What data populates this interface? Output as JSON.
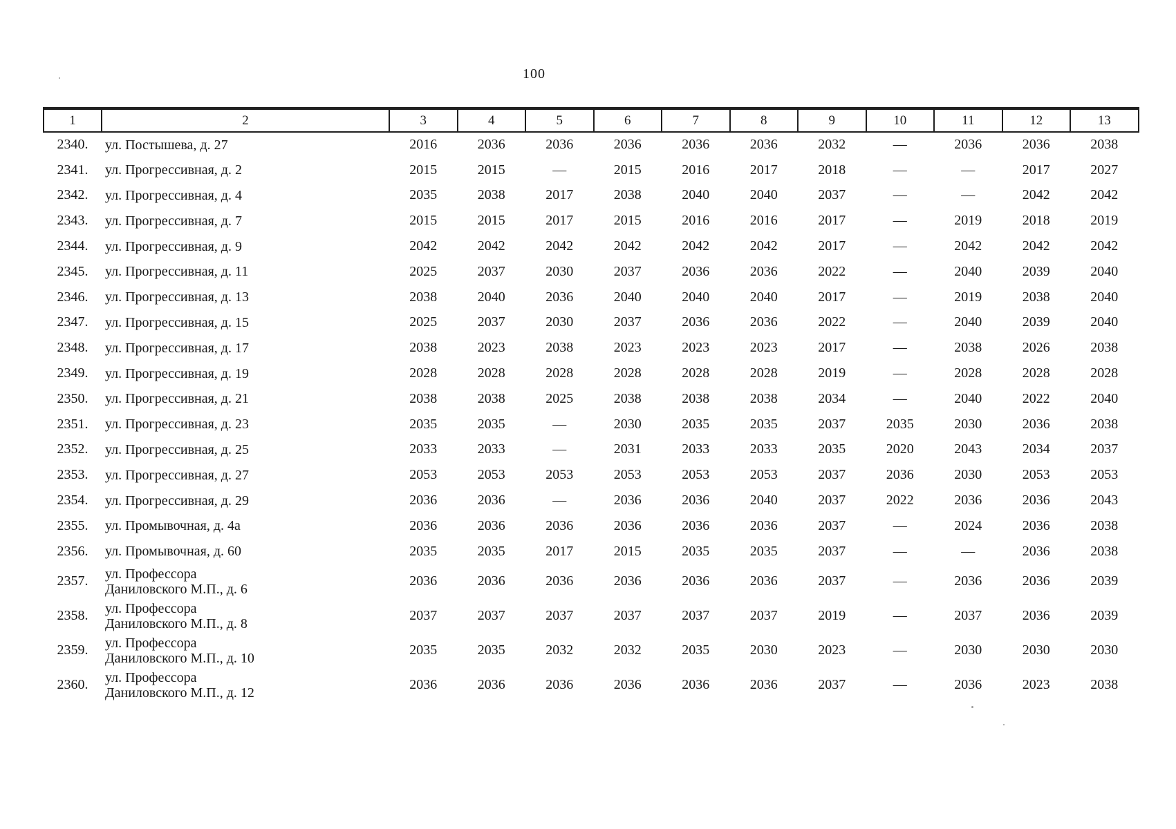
{
  "page_number": "100",
  "table": {
    "headers": [
      "1",
      "2",
      "3",
      "4",
      "5",
      "6",
      "7",
      "8",
      "9",
      "10",
      "11",
      "12",
      "13"
    ],
    "rows": [
      {
        "num": "2340.",
        "address_line1": "ул. Постышева, д. 27",
        "address_line2": "",
        "values": [
          "2016",
          "2036",
          "2036",
          "2036",
          "2036",
          "2036",
          "2032",
          "—",
          "2036",
          "2036",
          "2038"
        ]
      },
      {
        "num": "2341.",
        "address_line1": "ул. Прогрессивная, д. 2",
        "address_line2": "",
        "values": [
          "2015",
          "2015",
          "—",
          "2015",
          "2016",
          "2017",
          "2018",
          "—",
          "—",
          "2017",
          "2027"
        ]
      },
      {
        "num": "2342.",
        "address_line1": "ул. Прогрессивная, д. 4",
        "address_line2": "",
        "values": [
          "2035",
          "2038",
          "2017",
          "2038",
          "2040",
          "2040",
          "2037",
          "—",
          "—",
          "2042",
          "2042"
        ]
      },
      {
        "num": "2343.",
        "address_line1": "ул. Прогрессивная, д. 7",
        "address_line2": "",
        "values": [
          "2015",
          "2015",
          "2017",
          "2015",
          "2016",
          "2016",
          "2017",
          "—",
          "2019",
          "2018",
          "2019"
        ]
      },
      {
        "num": "2344.",
        "address_line1": "ул. Прогрессивная, д. 9",
        "address_line2": "",
        "values": [
          "2042",
          "2042",
          "2042",
          "2042",
          "2042",
          "2042",
          "2017",
          "—",
          "2042",
          "2042",
          "2042"
        ]
      },
      {
        "num": "2345.",
        "address_line1": "ул. Прогрессивная, д. 11",
        "address_line2": "",
        "values": [
          "2025",
          "2037",
          "2030",
          "2037",
          "2036",
          "2036",
          "2022",
          "—",
          "2040",
          "2039",
          "2040"
        ]
      },
      {
        "num": "2346.",
        "address_line1": "ул. Прогрессивная, д. 13",
        "address_line2": "",
        "values": [
          "2038",
          "2040",
          "2036",
          "2040",
          "2040",
          "2040",
          "2017",
          "—",
          "2019",
          "2038",
          "2040"
        ]
      },
      {
        "num": "2347.",
        "address_line1": "ул. Прогрессивная, д. 15",
        "address_line2": "",
        "values": [
          "2025",
          "2037",
          "2030",
          "2037",
          "2036",
          "2036",
          "2022",
          "—",
          "2040",
          "2039",
          "2040"
        ]
      },
      {
        "num": "2348.",
        "address_line1": "ул. Прогрессивная, д. 17",
        "address_line2": "",
        "values": [
          "2038",
          "2023",
          "2038",
          "2023",
          "2023",
          "2023",
          "2017",
          "—",
          "2038",
          "2026",
          "2038"
        ]
      },
      {
        "num": "2349.",
        "address_line1": "ул. Прогрессивная, д. 19",
        "address_line2": "",
        "values": [
          "2028",
          "2028",
          "2028",
          "2028",
          "2028",
          "2028",
          "2019",
          "—",
          "2028",
          "2028",
          "2028"
        ]
      },
      {
        "num": "2350.",
        "address_line1": "ул. Прогрессивная, д. 21",
        "address_line2": "",
        "values": [
          "2038",
          "2038",
          "2025",
          "2038",
          "2038",
          "2038",
          "2034",
          "—",
          "2040",
          "2022",
          "2040"
        ]
      },
      {
        "num": "2351.",
        "address_line1": "ул. Прогрессивная, д. 23",
        "address_line2": "",
        "values": [
          "2035",
          "2035",
          "—",
          "2030",
          "2035",
          "2035",
          "2037",
          "2035",
          "2030",
          "2036",
          "2038"
        ]
      },
      {
        "num": "2352.",
        "address_line1": "ул. Прогрессивная, д. 25",
        "address_line2": "",
        "values": [
          "2033",
          "2033",
          "—",
          "2031",
          "2033",
          "2033",
          "2035",
          "2020",
          "2043",
          "2034",
          "2037"
        ]
      },
      {
        "num": "2353.",
        "address_line1": "ул. Прогрессивная, д. 27",
        "address_line2": "",
        "values": [
          "2053",
          "2053",
          "2053",
          "2053",
          "2053",
          "2053",
          "2037",
          "2036",
          "2030",
          "2053",
          "2053"
        ]
      },
      {
        "num": "2354.",
        "address_line1": "ул. Прогрессивная, д. 29",
        "address_line2": "",
        "values": [
          "2036",
          "2036",
          "—",
          "2036",
          "2036",
          "2040",
          "2037",
          "2022",
          "2036",
          "2036",
          "2043"
        ]
      },
      {
        "num": "2355.",
        "address_line1": "ул. Промывочная, д. 4а",
        "address_line2": "",
        "values": [
          "2036",
          "2036",
          "2036",
          "2036",
          "2036",
          "2036",
          "2037",
          "—",
          "2024",
          "2036",
          "2038"
        ]
      },
      {
        "num": "2356.",
        "address_line1": "ул. Промывочная, д. 60",
        "address_line2": "",
        "values": [
          "2035",
          "2035",
          "2017",
          "2015",
          "2035",
          "2035",
          "2037",
          "—",
          "—",
          "2036",
          "2038"
        ]
      },
      {
        "num": "2357.",
        "address_line1": "ул. Профессора",
        "address_line2": "Даниловского М.П., д. 6",
        "values": [
          "2036",
          "2036",
          "2036",
          "2036",
          "2036",
          "2036",
          "2037",
          "—",
          "2036",
          "2036",
          "2039"
        ]
      },
      {
        "num": "2358.",
        "address_line1": "ул. Профессора",
        "address_line2": "Даниловского М.П., д. 8",
        "values": [
          "2037",
          "2037",
          "2037",
          "2037",
          "2037",
          "2037",
          "2019",
          "—",
          "2037",
          "2036",
          "2039"
        ]
      },
      {
        "num": "2359.",
        "address_line1": "ул. Профессора",
        "address_line2": "Даниловского М.П., д. 10",
        "values": [
          "2035",
          "2035",
          "2032",
          "2032",
          "2035",
          "2030",
          "2023",
          "—",
          "2030",
          "2030",
          "2030"
        ]
      },
      {
        "num": "2360.",
        "address_line1": "ул. Профессора",
        "address_line2": "Даниловского М.П., д. 12",
        "values": [
          "2036",
          "2036",
          "2036",
          "2036",
          "2036",
          "2036",
          "2037",
          "—",
          "2036",
          "2023",
          "2038"
        ]
      }
    ]
  }
}
